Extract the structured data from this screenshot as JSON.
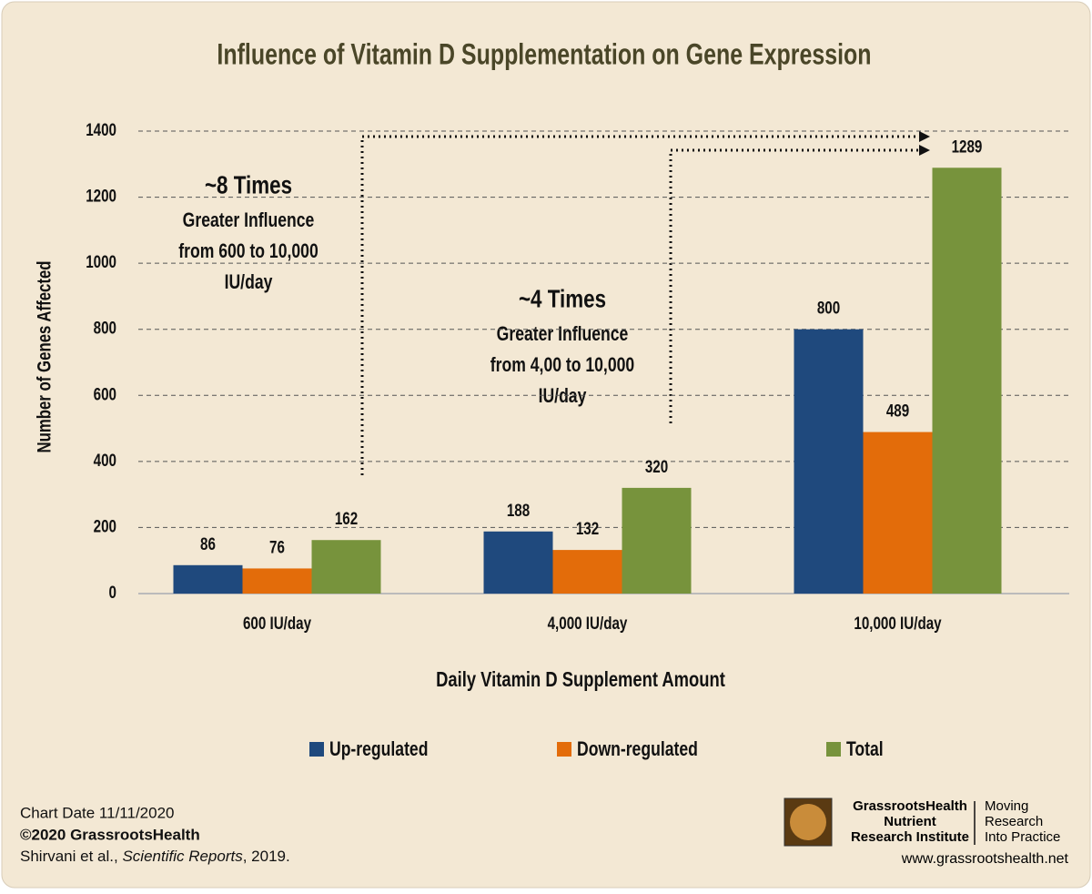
{
  "chart_data": {
    "type": "bar",
    "title": "Influence of Vitamin D Supplementation on Gene Expression",
    "x_label": "Daily Vitamin D Supplement Amount",
    "y_label": "Number of Genes Affected",
    "categories": [
      "600 IU/day",
      "4,000 IU/day",
      "10,000 IU/day"
    ],
    "series": [
      {
        "name": "Up-regulated",
        "color": "#1f497d",
        "values": [
          86,
          188,
          800
        ]
      },
      {
        "name": "Down-regulated",
        "color": "#e36c0a",
        "values": [
          76,
          132,
          489
        ]
      },
      {
        "name": "Total",
        "color": "#77933c",
        "values": [
          162,
          320,
          1289
        ]
      }
    ],
    "ylim": [
      0,
      1400
    ],
    "yticks": [
      0,
      200,
      400,
      600,
      800,
      1000,
      1200,
      1400
    ],
    "grid": true,
    "annotations": [
      {
        "headline": "~8 Times",
        "lines": [
          "Greater Influence",
          "from 600 to 10,000",
          "IU/day"
        ]
      },
      {
        "headline": "~4 Times",
        "lines": [
          "Greater Influence",
          "from 4,00 to 10,000",
          "IU/day"
        ]
      }
    ]
  },
  "footer": {
    "date": "Chart Date 11/11/2020",
    "copyright": "©2020 GrassrootsHealth",
    "citation_authors": "Shirvani et al., ",
    "citation_journal": "Scientific Reports",
    "citation_year": ", 2019."
  },
  "logo": {
    "name_lines": [
      "GrassrootsHealth",
      "Nutrient",
      "Research Institute"
    ],
    "tagline_lines": [
      "Moving",
      "Research",
      "Into Practice"
    ],
    "url": "www.grassrootshealth.net"
  }
}
